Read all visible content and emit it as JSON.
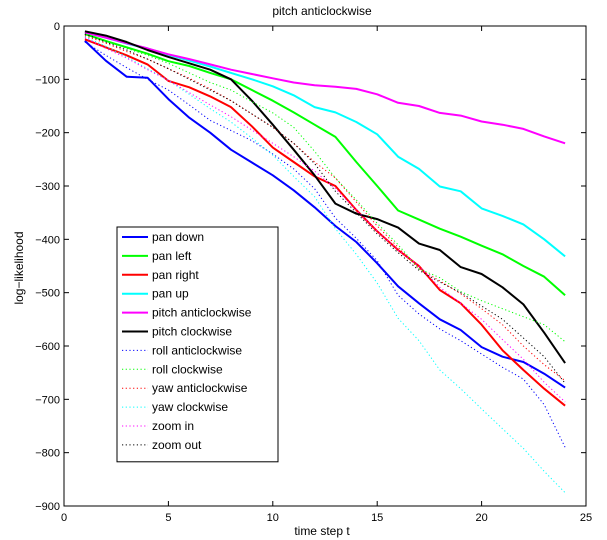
{
  "chart_data": {
    "type": "line",
    "title": "pitch anticlockwise",
    "xlabel": "time step t",
    "ylabel": "log−likelihood",
    "xlim": [
      0,
      25
    ],
    "ylim": [
      -900,
      0
    ],
    "xticks": [
      0,
      5,
      10,
      15,
      20,
      25
    ],
    "yticks": [
      0,
      -100,
      -200,
      -300,
      -400,
      -500,
      -600,
      -700,
      -800,
      -900
    ],
    "x": [
      1,
      2,
      3,
      4,
      5,
      6,
      7,
      8,
      9,
      10,
      11,
      12,
      13,
      14,
      15,
      16,
      17,
      18,
      19,
      20,
      21,
      22,
      23,
      24
    ],
    "grid": false,
    "legend_placement": "lower-left",
    "series": [
      {
        "name": "pan down",
        "color": "#0000ff",
        "dash": "solid",
        "values": [
          -28,
          -65,
          -95,
          -97,
          -137,
          -172,
          -200,
          -232,
          -256,
          -280,
          -308,
          -340,
          -375,
          -405,
          -445,
          -488,
          -520,
          -550,
          -570,
          -602,
          -620,
          -630,
          -652,
          -678
        ]
      },
      {
        "name": "pan left",
        "color": "#00ff00",
        "dash": "solid",
        "values": [
          -15,
          -28,
          -40,
          -52,
          -66,
          -75,
          -88,
          -100,
          -120,
          -140,
          -162,
          -185,
          -208,
          -255,
          -300,
          -346,
          -363,
          -380,
          -395,
          -412,
          -428,
          -450,
          -470,
          -505
        ]
      },
      {
        "name": "pan right",
        "color": "#ff0000",
        "dash": "solid",
        "values": [
          -25,
          -40,
          -55,
          -72,
          -103,
          -115,
          -132,
          -152,
          -188,
          -228,
          -255,
          -282,
          -300,
          -345,
          -385,
          -420,
          -450,
          -495,
          -520,
          -560,
          -608,
          -645,
          -680,
          -712
        ]
      },
      {
        "name": "pan up",
        "color": "#00ffff",
        "dash": "solid",
        "values": [
          -12,
          -22,
          -33,
          -42,
          -54,
          -65,
          -76,
          -88,
          -100,
          -113,
          -130,
          -152,
          -162,
          -180,
          -203,
          -245,
          -268,
          -301,
          -310,
          -342,
          -356,
          -372,
          -400,
          -432
        ]
      },
      {
        "name": "pitch anticlockwise",
        "color": "#ff00ff",
        "dash": "solid",
        "values": [
          -12,
          -22,
          -32,
          -42,
          -53,
          -62,
          -72,
          -82,
          -90,
          -98,
          -106,
          -111,
          -114,
          -118,
          -128,
          -144,
          -150,
          -163,
          -168,
          -179,
          -185,
          -193,
          -207,
          -220
        ]
      },
      {
        "name": "pitch clockwise",
        "color": "#000000",
        "dash": "solid",
        "values": [
          -10,
          -18,
          -30,
          -45,
          -58,
          -70,
          -82,
          -100,
          -140,
          -185,
          -232,
          -280,
          -333,
          -352,
          -362,
          -378,
          -408,
          -420,
          -452,
          -465,
          -490,
          -522,
          -575,
          -632
        ]
      },
      {
        "name": "roll anticlockwise",
        "color": "#0000ff",
        "dash": "dotted",
        "values": [
          -30,
          -55,
          -78,
          -100,
          -120,
          -148,
          -177,
          -196,
          -215,
          -240,
          -268,
          -305,
          -360,
          -398,
          -440,
          -505,
          -540,
          -568,
          -590,
          -615,
          -640,
          -662,
          -710,
          -790
        ]
      },
      {
        "name": "roll clockwise",
        "color": "#00ff00",
        "dash": "dotted",
        "values": [
          -16,
          -28,
          -42,
          -55,
          -70,
          -88,
          -106,
          -120,
          -142,
          -163,
          -190,
          -235,
          -285,
          -326,
          -370,
          -410,
          -455,
          -472,
          -498,
          -515,
          -530,
          -545,
          -560,
          -592
        ]
      },
      {
        "name": "yaw anticlockwise",
        "color": "#ff0000",
        "dash": "dotted",
        "values": [
          -18,
          -32,
          -48,
          -62,
          -80,
          -98,
          -118,
          -140,
          -165,
          -190,
          -220,
          -255,
          -285,
          -330,
          -375,
          -415,
          -455,
          -478,
          -502,
          -530,
          -560,
          -600,
          -635,
          -665
        ]
      },
      {
        "name": "yaw clockwise",
        "color": "#00ffff",
        "dash": "dotted",
        "values": [
          -20,
          -38,
          -58,
          -80,
          -102,
          -128,
          -155,
          -180,
          -210,
          -242,
          -282,
          -320,
          -380,
          -428,
          -482,
          -548,
          -590,
          -645,
          -680,
          -718,
          -755,
          -792,
          -835,
          -875
        ]
      },
      {
        "name": "zoom in",
        "color": "#ff00ff",
        "dash": "dotted",
        "values": [
          -22,
          -42,
          -60,
          -82,
          -102,
          -125,
          -148,
          -170,
          -195,
          -220,
          -245,
          -272,
          -305,
          -345,
          -385,
          -420,
          -450,
          -490,
          -520,
          -550,
          -588,
          -625,
          -668,
          -705
        ]
      },
      {
        "name": "zoom out",
        "color": "#000000",
        "dash": "dotted",
        "values": [
          -15,
          -30,
          -45,
          -62,
          -80,
          -100,
          -120,
          -140,
          -165,
          -190,
          -220,
          -258,
          -310,
          -350,
          -390,
          -425,
          -458,
          -480,
          -500,
          -525,
          -550,
          -585,
          -620,
          -670
        ]
      }
    ]
  }
}
